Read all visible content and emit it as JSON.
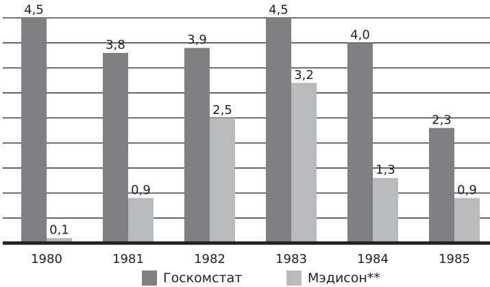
{
  "chart_data": {
    "type": "bar",
    "categories": [
      "1980",
      "1981",
      "1982",
      "1983",
      "1984",
      "1985"
    ],
    "series": [
      {
        "name": "Госкомстат",
        "color": "#808083",
        "values": [
          4.5,
          3.8,
          3.9,
          4.5,
          4.0,
          2.3
        ],
        "labels": [
          "4,5",
          "3,8",
          "3,9",
          "4,5",
          "4,0",
          "2,3"
        ]
      },
      {
        "name": "Мэдисон**",
        "color": "#b9babc",
        "values": [
          0.1,
          0.9,
          2.5,
          3.2,
          1.3,
          0.9
        ],
        "labels": [
          "0,1",
          "0,9",
          "2,5",
          "3,2",
          "1,3",
          "0,9"
        ]
      }
    ],
    "ylim": [
      0,
      4.5
    ],
    "grid": true,
    "legend_position": "bottom"
  }
}
